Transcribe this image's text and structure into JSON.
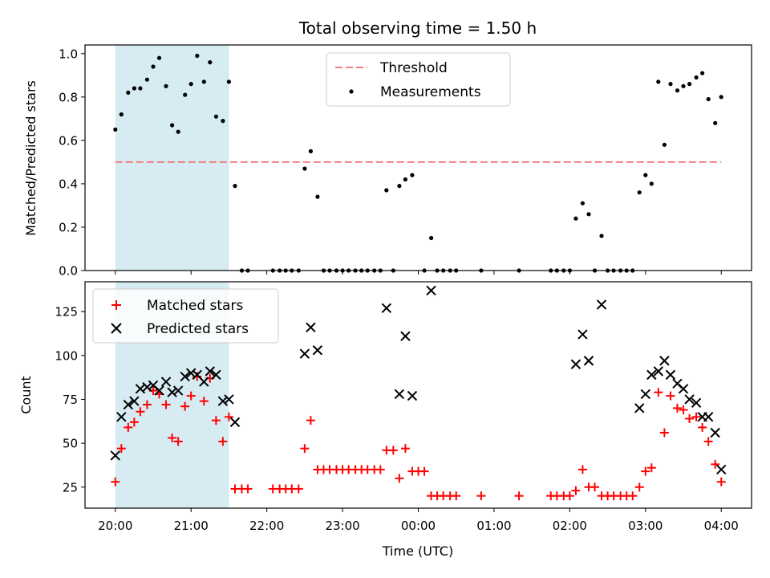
{
  "chart_data": {
    "title": "Total observing time = 1.50 h",
    "xlabel": "Time (UTC)",
    "x_ticks": [
      "20:00",
      "21:00",
      "22:00",
      "23:00",
      "00:00",
      "01:00",
      "02:00",
      "03:00",
      "04:00"
    ],
    "x_range_hours": [
      19.6,
      28.4
    ],
    "highlight_span_hours": [
      20.0,
      21.5
    ],
    "colors": {
      "highlight": "#add8e6",
      "threshold": "#f08080",
      "matched": "#ff0000",
      "predicted": "#000000"
    },
    "panels": [
      {
        "type": "scatter",
        "ylabel": "Matched/Predicted stars",
        "ylim": [
          0,
          1.04
        ],
        "y_ticks": [
          "0.0",
          "0.2",
          "0.4",
          "0.6",
          "0.8",
          "1.0"
        ],
        "legend_position": "upper-center",
        "threshold": {
          "name": "Threshold",
          "value": 0.5
        },
        "series": [
          {
            "name": "Measurements",
            "points": [
              [
                20.0,
                0.65
              ],
              [
                20.08,
                0.72
              ],
              [
                20.17,
                0.82
              ],
              [
                20.25,
                0.84
              ],
              [
                20.33,
                0.84
              ],
              [
                20.42,
                0.88
              ],
              [
                20.5,
                0.94
              ],
              [
                20.58,
                0.98
              ],
              [
                20.67,
                0.85
              ],
              [
                20.75,
                0.67
              ],
              [
                20.83,
                0.64
              ],
              [
                20.92,
                0.81
              ],
              [
                21.0,
                0.86
              ],
              [
                21.08,
                0.99
              ],
              [
                21.17,
                0.87
              ],
              [
                21.25,
                0.96
              ],
              [
                21.33,
                0.71
              ],
              [
                21.42,
                0.69
              ],
              [
                21.5,
                0.87
              ],
              [
                21.58,
                0.39
              ],
              [
                21.67,
                0.0
              ],
              [
                21.75,
                0.0
              ],
              [
                22.08,
                0.0
              ],
              [
                22.17,
                0.0
              ],
              [
                22.25,
                0.0
              ],
              [
                22.33,
                0.0
              ],
              [
                22.42,
                0.0
              ],
              [
                22.5,
                0.47
              ],
              [
                22.58,
                0.55
              ],
              [
                22.67,
                0.34
              ],
              [
                22.75,
                0.0
              ],
              [
                22.83,
                0.0
              ],
              [
                22.92,
                0.0
              ],
              [
                23.0,
                0.0
              ],
              [
                23.08,
                0.0
              ],
              [
                23.17,
                0.0
              ],
              [
                23.25,
                0.0
              ],
              [
                23.33,
                0.0
              ],
              [
                23.42,
                0.0
              ],
              [
                23.5,
                0.0
              ],
              [
                23.58,
                0.37
              ],
              [
                23.67,
                0.0
              ],
              [
                23.75,
                0.39
              ],
              [
                23.83,
                0.42
              ],
              [
                23.92,
                0.44
              ],
              [
                24.08,
                0.0
              ],
              [
                24.17,
                0.15
              ],
              [
                24.25,
                0.0
              ],
              [
                24.33,
                0.0
              ],
              [
                24.42,
                0.0
              ],
              [
                24.5,
                0.0
              ],
              [
                24.83,
                0.0
              ],
              [
                25.33,
                0.0
              ],
              [
                25.75,
                0.0
              ],
              [
                25.83,
                0.0
              ],
              [
                25.92,
                0.0
              ],
              [
                26.0,
                0.0
              ],
              [
                26.08,
                0.24
              ],
              [
                26.17,
                0.31
              ],
              [
                26.25,
                0.26
              ],
              [
                26.33,
                0.0
              ],
              [
                26.42,
                0.16
              ],
              [
                26.5,
                0.0
              ],
              [
                26.58,
                0.0
              ],
              [
                26.67,
                0.0
              ],
              [
                26.75,
                0.0
              ],
              [
                26.83,
                0.0
              ],
              [
                26.92,
                0.36
              ],
              [
                27.0,
                0.44
              ],
              [
                27.08,
                0.4
              ],
              [
                27.17,
                0.87
              ],
              [
                27.25,
                0.58
              ],
              [
                27.33,
                0.86
              ],
              [
                27.42,
                0.83
              ],
              [
                27.5,
                0.85
              ],
              [
                27.58,
                0.86
              ],
              [
                27.67,
                0.89
              ],
              [
                27.75,
                0.91
              ],
              [
                27.83,
                0.79
              ],
              [
                27.92,
                0.68
              ],
              [
                28.0,
                0.8
              ]
            ]
          }
        ]
      },
      {
        "type": "scatter",
        "ylabel": "Count",
        "ylim": [
          13,
          142
        ],
        "y_ticks": [
          "25",
          "50",
          "75",
          "100",
          "125"
        ],
        "legend_position": "upper-left",
        "series": [
          {
            "name": "Matched stars",
            "points": [
              [
                20.0,
                28
              ],
              [
                20.08,
                47
              ],
              [
                20.17,
                59
              ],
              [
                20.25,
                62
              ],
              [
                20.33,
                68
              ],
              [
                20.42,
                72
              ],
              [
                20.5,
                80
              ],
              [
                20.58,
                78
              ],
              [
                20.67,
                72
              ],
              [
                20.75,
                53
              ],
              [
                20.83,
                51
              ],
              [
                20.92,
                71
              ],
              [
                21.0,
                77
              ],
              [
                21.08,
                88
              ],
              [
                21.17,
                74
              ],
              [
                21.25,
                87
              ],
              [
                21.33,
                63
              ],
              [
                21.42,
                51
              ],
              [
                21.5,
                65
              ],
              [
                21.58,
                24
              ],
              [
                21.67,
                24
              ],
              [
                21.75,
                24
              ],
              [
                22.08,
                24
              ],
              [
                22.17,
                24
              ],
              [
                22.25,
                24
              ],
              [
                22.33,
                24
              ],
              [
                22.42,
                24
              ],
              [
                22.5,
                47
              ],
              [
                22.58,
                63
              ],
              [
                22.67,
                35
              ],
              [
                22.75,
                35
              ],
              [
                22.83,
                35
              ],
              [
                22.92,
                35
              ],
              [
                23.0,
                35
              ],
              [
                23.08,
                35
              ],
              [
                23.17,
                35
              ],
              [
                23.25,
                35
              ],
              [
                23.33,
                35
              ],
              [
                23.42,
                35
              ],
              [
                23.5,
                35
              ],
              [
                23.58,
                46
              ],
              [
                23.67,
                46
              ],
              [
                23.75,
                30
              ],
              [
                23.83,
                47
              ],
              [
                23.92,
                34
              ],
              [
                24.0,
                34
              ],
              [
                24.08,
                34
              ],
              [
                24.17,
                20
              ],
              [
                24.25,
                20
              ],
              [
                24.33,
                20
              ],
              [
                24.42,
                20
              ],
              [
                24.5,
                20
              ],
              [
                24.83,
                20
              ],
              [
                25.33,
                20
              ],
              [
                25.75,
                20
              ],
              [
                25.83,
                20
              ],
              [
                25.92,
                20
              ],
              [
                26.0,
                20
              ],
              [
                26.08,
                23
              ],
              [
                26.17,
                35
              ],
              [
                26.25,
                25
              ],
              [
                26.33,
                25
              ],
              [
                26.42,
                20
              ],
              [
                26.5,
                20
              ],
              [
                26.58,
                20
              ],
              [
                26.67,
                20
              ],
              [
                26.75,
                20
              ],
              [
                26.83,
                20
              ],
              [
                26.92,
                25
              ],
              [
                27.0,
                34
              ],
              [
                27.08,
                36
              ],
              [
                27.17,
                79
              ],
              [
                27.25,
                56
              ],
              [
                27.33,
                77
              ],
              [
                27.42,
                70
              ],
              [
                27.5,
                69
              ],
              [
                27.58,
                64
              ],
              [
                27.67,
                65
              ],
              [
                27.75,
                59
              ],
              [
                27.83,
                51
              ],
              [
                27.92,
                38
              ],
              [
                28.0,
                28
              ]
            ]
          },
          {
            "name": "Predicted stars",
            "points": [
              [
                20.0,
                43
              ],
              [
                20.08,
                65
              ],
              [
                20.17,
                72
              ],
              [
                20.25,
                74
              ],
              [
                20.33,
                81
              ],
              [
                20.42,
                82
              ],
              [
                20.5,
                83
              ],
              [
                20.58,
                80
              ],
              [
                20.67,
                85
              ],
              [
                20.75,
                79
              ],
              [
                20.83,
                80
              ],
              [
                20.92,
                88
              ],
              [
                21.0,
                90
              ],
              [
                21.08,
                89
              ],
              [
                21.17,
                85
              ],
              [
                21.25,
                91
              ],
              [
                21.33,
                89
              ],
              [
                21.42,
                74
              ],
              [
                21.5,
                75
              ],
              [
                21.58,
                62
              ],
              [
                22.5,
                101
              ],
              [
                22.58,
                116
              ],
              [
                22.67,
                103
              ],
              [
                23.58,
                127
              ],
              [
                23.75,
                78
              ],
              [
                23.83,
                111
              ],
              [
                23.92,
                77
              ],
              [
                24.17,
                137
              ],
              [
                26.08,
                95
              ],
              [
                26.17,
                112
              ],
              [
                26.25,
                97
              ],
              [
                26.42,
                129
              ],
              [
                26.92,
                70
              ],
              [
                27.0,
                78
              ],
              [
                27.08,
                89
              ],
              [
                27.17,
                91
              ],
              [
                27.25,
                97
              ],
              [
                27.33,
                89
              ],
              [
                27.42,
                84
              ],
              [
                27.5,
                81
              ],
              [
                27.58,
                75
              ],
              [
                27.67,
                73
              ],
              [
                27.75,
                65
              ],
              [
                27.83,
                65
              ],
              [
                27.92,
                56
              ],
              [
                28.0,
                35
              ]
            ]
          }
        ]
      }
    ]
  }
}
